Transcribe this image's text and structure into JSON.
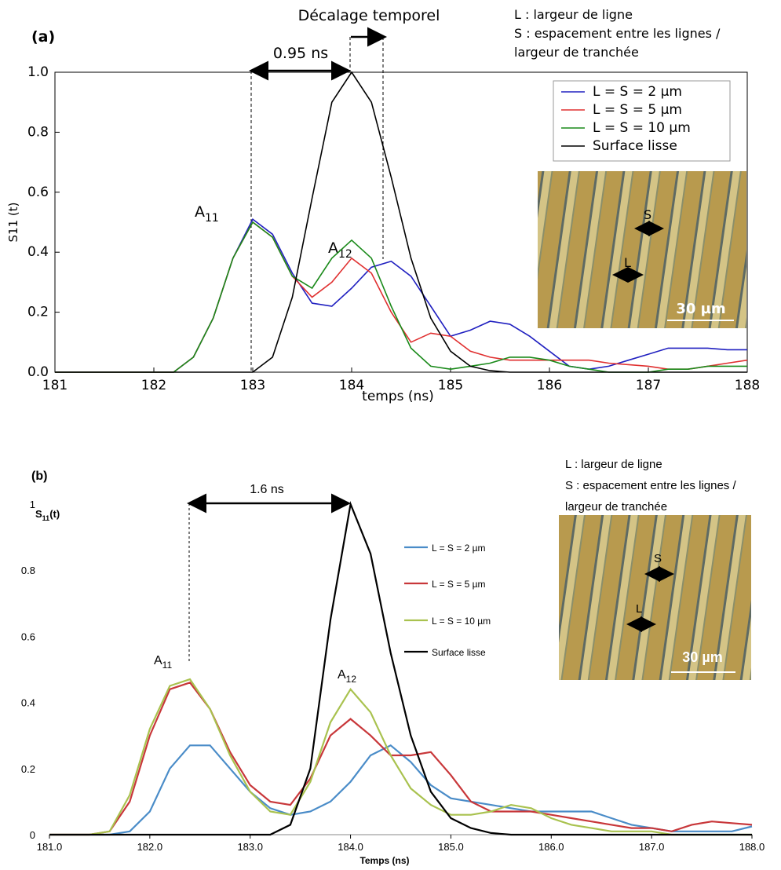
{
  "chart_data": [
    {
      "type": "line",
      "panel_label": "(a)",
      "xlabel": "temps (ns)",
      "ylabel": "S11 (t)",
      "xlim": [
        181,
        188
      ],
      "xticks": [
        181,
        182,
        183,
        184,
        185,
        186,
        187,
        188
      ],
      "ylim": [
        0,
        1
      ],
      "yticks": [
        {
          "value": 0,
          "label": "0.0"
        },
        0.2,
        0.4,
        0.6,
        0.8,
        {
          "value": 1,
          "label": "1.0"
        }
      ],
      "grid": false,
      "legend": "upper right",
      "x": [
        181.0,
        181.2,
        181.4,
        181.6,
        181.8,
        182.0,
        182.2,
        182.4,
        182.6,
        182.8,
        183.0,
        183.2,
        183.4,
        183.6,
        183.8,
        184.0,
        184.2,
        184.4,
        184.6,
        184.8,
        185.0,
        185.2,
        185.4,
        185.6,
        185.8,
        186.0,
        186.2,
        186.4,
        186.6,
        186.8,
        187.0,
        187.2,
        187.4,
        187.6,
        187.8,
        188.0
      ],
      "series": [
        {
          "name": "L = S = 2 µm",
          "color": "#2020c0",
          "values": [
            0,
            0,
            0,
            0,
            0,
            0,
            0,
            0.05,
            0.18,
            0.38,
            0.51,
            0.46,
            0.33,
            0.23,
            0.22,
            0.28,
            0.35,
            0.37,
            0.32,
            0.22,
            0.12,
            0.14,
            0.17,
            0.16,
            0.12,
            0.07,
            0.02,
            0.01,
            0.02,
            0.04,
            0.06,
            0.08,
            0.08,
            0.08,
            0.075,
            0.075
          ]
        },
        {
          "name": "L = S = 5 µm",
          "color": "#e03030",
          "values": [
            0,
            0,
            0,
            0,
            0,
            0,
            0,
            0.05,
            0.18,
            0.38,
            0.5,
            0.45,
            0.32,
            0.25,
            0.3,
            0.38,
            0.33,
            0.2,
            0.1,
            0.13,
            0.12,
            0.07,
            0.05,
            0.04,
            0.04,
            0.04,
            0.04,
            0.04,
            0.03,
            0.025,
            0.02,
            0.01,
            0.01,
            0.02,
            0.03,
            0.04
          ]
        },
        {
          "name": "L = S = 10 µm",
          "color": "#1a8a1a",
          "values": [
            0,
            0,
            0,
            0,
            0,
            0,
            0,
            0.05,
            0.18,
            0.38,
            0.5,
            0.45,
            0.32,
            0.28,
            0.38,
            0.44,
            0.38,
            0.22,
            0.08,
            0.02,
            0.01,
            0.02,
            0.03,
            0.05,
            0.05,
            0.04,
            0.02,
            0.01,
            0,
            0,
            0,
            0.01,
            0.01,
            0.02,
            0.02,
            0.02
          ]
        },
        {
          "name": "Surface lisse",
          "color": "#000000",
          "values": [
            0,
            0,
            0,
            0,
            0,
            0,
            0,
            0,
            0,
            0,
            0,
            0.05,
            0.25,
            0.58,
            0.9,
            1.0,
            0.9,
            0.65,
            0.38,
            0.18,
            0.07,
            0.02,
            0.005,
            0,
            0,
            0,
            0,
            0,
            0,
            0,
            0,
            0,
            0,
            0,
            0,
            0
          ]
        }
      ],
      "annotations": {
        "shift": "Décalage temporel",
        "delta": "0.95 ns",
        "peak1": {
          "base": "A",
          "sub": "11"
        },
        "peak2": {
          "base": "A",
          "sub": "12"
        }
      },
      "notes": [
        "L : largeur de ligne",
        "S : espacement entre les lignes /",
        "largeur de tranchée"
      ],
      "inset": {
        "s": "S",
        "l": "L",
        "scale": "30 µm"
      }
    },
    {
      "type": "line",
      "panel_label": "(b)",
      "xlabel": "Temps (ns)",
      "ylabel": {
        "base": "S",
        "sub": "11",
        "rest": "(t)"
      },
      "xlim": [
        181,
        188
      ],
      "xticks": [
        {
          "value": 181,
          "label": "181.0"
        },
        {
          "value": 182,
          "label": "182.0"
        },
        {
          "value": 183,
          "label": "183.0"
        },
        {
          "value": 184,
          "label": "184.0"
        },
        {
          "value": 185,
          "label": "185.0"
        },
        {
          "value": 186,
          "label": "186.0"
        },
        {
          "value": 187,
          "label": "187.0"
        },
        {
          "value": 188,
          "label": "188.0"
        }
      ],
      "ylim": [
        0,
        1
      ],
      "yticks": [
        0,
        0.2,
        0.4,
        0.6,
        0.8,
        1
      ],
      "grid": false,
      "legend": "center right",
      "x": [
        181.0,
        181.2,
        181.4,
        181.6,
        181.8,
        182.0,
        182.2,
        182.4,
        182.6,
        182.8,
        183.0,
        183.2,
        183.4,
        183.6,
        183.8,
        184.0,
        184.2,
        184.4,
        184.6,
        184.8,
        185.0,
        185.2,
        185.4,
        185.6,
        185.8,
        186.0,
        186.2,
        186.4,
        186.6,
        186.8,
        187.0,
        187.2,
        187.4,
        187.6,
        187.8,
        188.0
      ],
      "series": [
        {
          "name": "L = S = 2 µm",
          "color": "#4a8cc8",
          "values": [
            0,
            0,
            0,
            0,
            0.01,
            0.07,
            0.2,
            0.27,
            0.27,
            0.2,
            0.13,
            0.08,
            0.06,
            0.07,
            0.1,
            0.16,
            0.24,
            0.27,
            0.22,
            0.15,
            0.11,
            0.1,
            0.09,
            0.08,
            0.07,
            0.07,
            0.07,
            0.07,
            0.05,
            0.03,
            0.02,
            0.01,
            0.01,
            0.01,
            0.01,
            0.025
          ]
        },
        {
          "name": "L = S = 5 µm",
          "color": "#c8373a",
          "values": [
            0,
            0,
            0,
            0.01,
            0.1,
            0.3,
            0.44,
            0.46,
            0.38,
            0.25,
            0.15,
            0.1,
            0.09,
            0.17,
            0.3,
            0.35,
            0.3,
            0.24,
            0.24,
            0.25,
            0.18,
            0.1,
            0.07,
            0.07,
            0.07,
            0.06,
            0.05,
            0.04,
            0.03,
            0.02,
            0.02,
            0.01,
            0.03,
            0.04,
            0.035,
            0.03
          ]
        },
        {
          "name": "L = S = 10 µm",
          "color": "#a9c24f",
          "values": [
            0,
            0,
            0,
            0.01,
            0.12,
            0.32,
            0.45,
            0.47,
            0.38,
            0.24,
            0.13,
            0.07,
            0.06,
            0.16,
            0.34,
            0.44,
            0.37,
            0.24,
            0.14,
            0.09,
            0.06,
            0.06,
            0.07,
            0.09,
            0.08,
            0.05,
            0.03,
            0.02,
            0.01,
            0.01,
            0.01,
            0,
            0,
            0,
            0,
            0
          ]
        },
        {
          "name": "Surface lisse",
          "color": "#000000",
          "values": [
            0,
            0,
            0,
            0,
            0,
            0,
            0,
            0,
            0,
            0,
            0,
            0,
            0.03,
            0.2,
            0.65,
            1.0,
            0.85,
            0.55,
            0.3,
            0.13,
            0.05,
            0.02,
            0.005,
            0,
            0,
            0,
            0,
            0,
            0,
            0,
            0,
            0,
            0,
            0,
            0,
            0
          ]
        }
      ],
      "annotations": {
        "delta": "1.6 ns",
        "peak1": {
          "base": "A",
          "sub": "11"
        },
        "peak2": {
          "base": "A",
          "sub": "12"
        }
      },
      "notes": [
        "L : largeur de ligne",
        "S : espacement entre les lignes /",
        "largeur de tranchée"
      ],
      "inset": {
        "s": "S",
        "l": "L",
        "scale": "30 µm"
      }
    }
  ]
}
